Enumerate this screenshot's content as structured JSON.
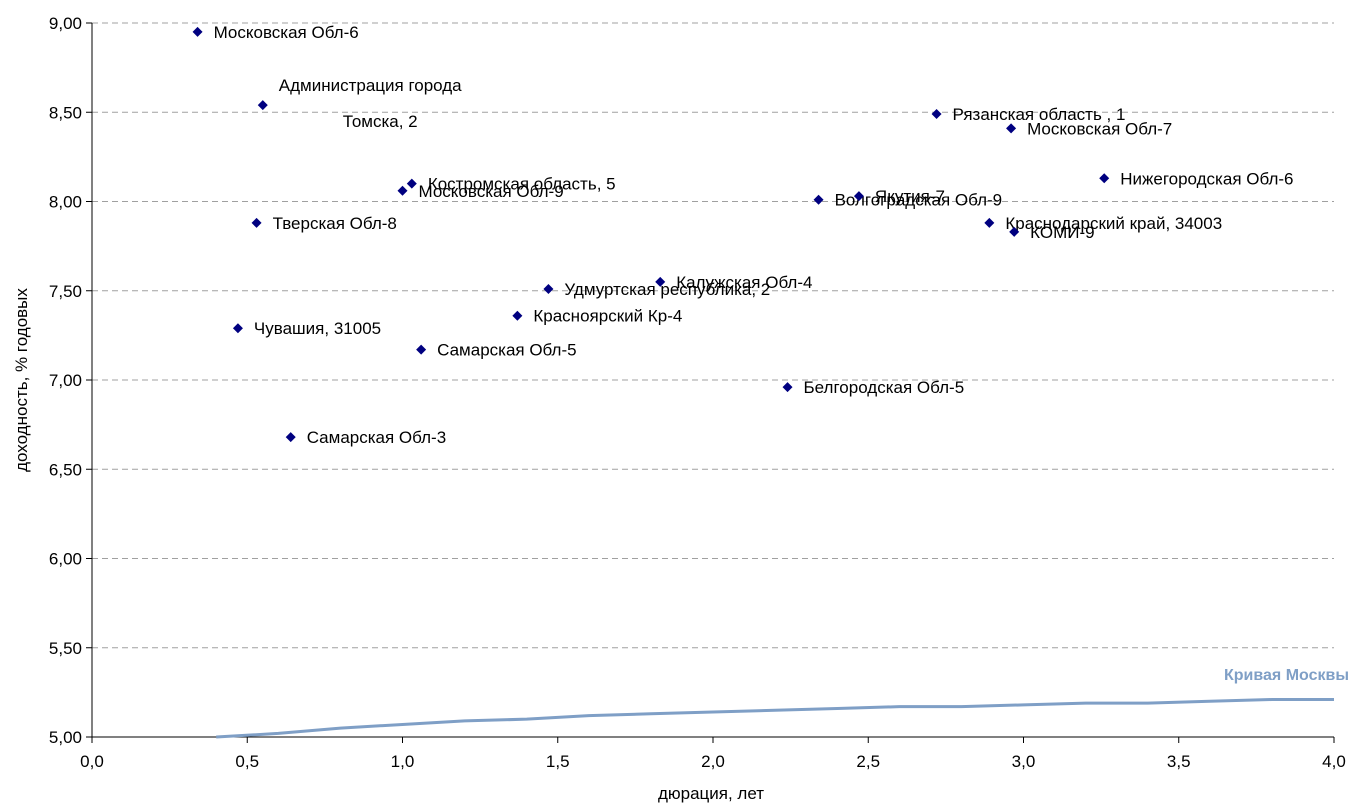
{
  "chart_data": {
    "type": "scatter",
    "title": "",
    "xlabel": "дюрация, лет",
    "ylabel": "доходность, % годовых",
    "xlim": [
      0,
      4
    ],
    "ylim": [
      5,
      9
    ],
    "x_ticks": [
      "0,0",
      "0,5",
      "1,0",
      "1,5",
      "2,0",
      "2,5",
      "3,0",
      "3,5",
      "4,0"
    ],
    "y_ticks": [
      "5,00",
      "5,50",
      "6,00",
      "6,50",
      "7,00",
      "7,50",
      "8,00",
      "8,50",
      "9,00"
    ],
    "grid": "horizontal dashed",
    "colors": {
      "points": "#000080",
      "curve": "#7f9fc6",
      "grid": "#a0a0a0"
    },
    "points": [
      {
        "label": "Московская Обл-6",
        "x": 0.34,
        "y": 8.95
      },
      {
        "label": "Администрация города",
        "label2": "Томска, 2",
        "x": 0.55,
        "y": 8.54
      },
      {
        "label": "Костромская область, 5",
        "x": 1.03,
        "y": 8.1
      },
      {
        "label": "Московская Обл-9",
        "x": 1.0,
        "y": 8.06
      },
      {
        "label": "Тверская Обл-8",
        "x": 0.53,
        "y": 7.88
      },
      {
        "label": "Чувашия, 31005",
        "x": 0.47,
        "y": 7.29
      },
      {
        "label": "Самарская Обл-5",
        "x": 1.06,
        "y": 7.17
      },
      {
        "label": "Самарская Обл-3",
        "x": 0.64,
        "y": 6.68
      },
      {
        "label": "Удмуртская республика, 2",
        "x": 1.47,
        "y": 7.51
      },
      {
        "label": "Красноярский Кр-4",
        "x": 1.37,
        "y": 7.36
      },
      {
        "label": "Калужская Обл-4",
        "x": 1.83,
        "y": 7.55
      },
      {
        "label": "Белгородская Обл-5",
        "x": 2.24,
        "y": 6.96
      },
      {
        "label": "Волгоградская Обл-9",
        "x": 2.34,
        "y": 8.01
      },
      {
        "label": "Якутия-7",
        "x": 2.47,
        "y": 8.03
      },
      {
        "label": "Рязанская область , 1",
        "x": 2.72,
        "y": 8.49
      },
      {
        "label": "Московская Обл-7",
        "x": 2.96,
        "y": 8.41
      },
      {
        "label": "Краснодарский край, 34003",
        "x": 2.89,
        "y": 7.88
      },
      {
        "label": "КОМИ-9",
        "x": 2.97,
        "y": 7.83
      },
      {
        "label": "Нижегородская Обл-6",
        "x": 3.26,
        "y": 8.13
      }
    ],
    "curve": {
      "name": "Кривая Москвы",
      "x": [
        0.4,
        0.6,
        0.8,
        1.0,
        1.2,
        1.4,
        1.6,
        1.8,
        2.0,
        2.2,
        2.4,
        2.6,
        2.8,
        3.0,
        3.2,
        3.4,
        3.6,
        3.8,
        4.0
      ],
      "y": [
        5.0,
        5.02,
        5.05,
        5.07,
        5.09,
        5.1,
        5.12,
        5.13,
        5.14,
        5.15,
        5.16,
        5.17,
        5.17,
        5.18,
        5.19,
        5.19,
        5.2,
        5.21,
        5.21
      ]
    }
  }
}
